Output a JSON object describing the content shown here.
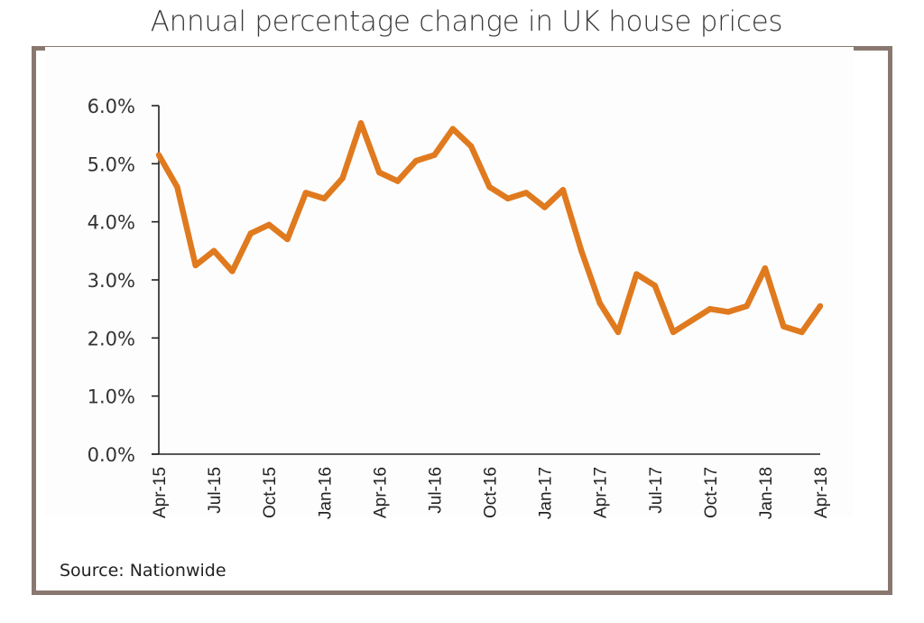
{
  "page": {
    "title": "Annual percentage change in UK house prices",
    "source": "Source: Nationwide",
    "frame_color": "#8a7870",
    "line_color": "#e07a1f"
  },
  "chart_data": {
    "type": "line",
    "title": "Annual percentage change in UK house prices",
    "xlabel": "",
    "ylabel": "",
    "ylim": [
      0,
      6
    ],
    "yticks": [
      0,
      1,
      2,
      3,
      4,
      5,
      6
    ],
    "ytick_labels": [
      "0.0%",
      "1.0%",
      "2.0%",
      "3.0%",
      "4.0%",
      "5.0%",
      "6.0%"
    ],
    "xtick_labels": [
      "Apr-15",
      "Jul-15",
      "Oct-15",
      "Jan-16",
      "Apr-16",
      "Jul-16",
      "Oct-16",
      "Jan-17",
      "Apr-17",
      "Jul-17",
      "Oct-17",
      "Jan-18",
      "Apr-18"
    ],
    "xtick_every_n_points": 3,
    "grid": false,
    "legend": "none",
    "series": [
      {
        "name": "Annual % change",
        "color": "#e07a1f",
        "x": [
          "Apr-15",
          "May-15",
          "Jun-15",
          "Jul-15",
          "Aug-15",
          "Sep-15",
          "Oct-15",
          "Nov-15",
          "Dec-15",
          "Jan-16",
          "Feb-16",
          "Mar-16",
          "Apr-16",
          "May-16",
          "Jun-16",
          "Jul-16",
          "Aug-16",
          "Sep-16",
          "Oct-16",
          "Nov-16",
          "Dec-16",
          "Jan-17",
          "Feb-17",
          "Mar-17",
          "Apr-17",
          "May-17",
          "Jun-17",
          "Jul-17",
          "Aug-17",
          "Sep-17",
          "Oct-17",
          "Nov-17",
          "Dec-17",
          "Jan-18",
          "Feb-18",
          "Mar-18",
          "Apr-18"
        ],
        "values": [
          5.15,
          4.6,
          3.25,
          3.5,
          3.15,
          3.8,
          3.95,
          3.7,
          4.5,
          4.4,
          4.75,
          5.7,
          4.85,
          4.7,
          5.05,
          5.15,
          5.6,
          5.3,
          4.6,
          4.4,
          4.5,
          4.25,
          4.55,
          3.5,
          2.6,
          2.1,
          3.1,
          2.9,
          2.1,
          2.3,
          2.5,
          2.45,
          2.55,
          3.2,
          2.2,
          2.1,
          2.55
        ]
      }
    ]
  }
}
